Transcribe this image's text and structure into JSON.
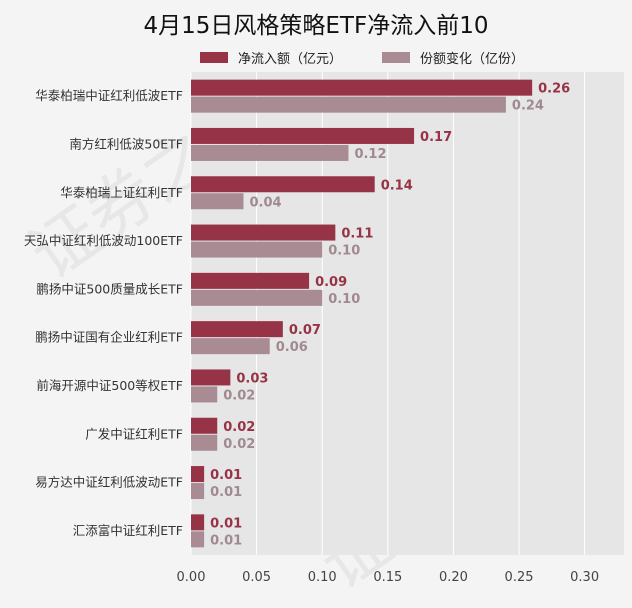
{
  "chart_data": {
    "type": "bar",
    "orientation": "horizontal",
    "title": "4月15日风格策略ETF净流入前10",
    "categories": [
      "华泰柏瑞中证红利低波ETF",
      "南方红利低波50ETF",
      "华泰柏瑞上证红利ETF",
      "天弘中证红利低波动100ETF",
      "鹏扬中证500质量成长ETF",
      "鹏扬中证国有企业红利ETF",
      "前海开源中证500等权ETF",
      "广发中证红利ETF",
      "易方达中证红利低波动ETF",
      "汇添富中证红利ETF"
    ],
    "series": [
      {
        "name": "净流入额（亿元）",
        "color": "#963346",
        "values": [
          0.26,
          0.17,
          0.14,
          0.11,
          0.09,
          0.07,
          0.03,
          0.02,
          0.01,
          0.01
        ],
        "labels": [
          "0.26",
          "0.17",
          "0.14",
          "0.11",
          "0.09",
          "0.07",
          "0.03",
          "0.02",
          "0.01",
          "0.01"
        ]
      },
      {
        "name": "份额变化（亿份）",
        "color": "#a98b93",
        "values": [
          0.24,
          0.12,
          0.04,
          0.1,
          0.1,
          0.06,
          0.02,
          0.02,
          0.01,
          0.01
        ],
        "labels": [
          "0.24",
          "0.12",
          "0.04",
          "0.10",
          "0.10",
          "0.06",
          "0.02",
          "0.02",
          "0.01",
          "0.01"
        ]
      }
    ],
    "xlim": [
      0,
      0.33
    ],
    "xticks": [
      0.0,
      0.05,
      0.1,
      0.15,
      0.2,
      0.25,
      0.3
    ],
    "xtick_labels": [
      "0.00",
      "0.05",
      "0.10",
      "0.15",
      "0.20",
      "0.25",
      "0.30"
    ],
    "grid": true,
    "legend_position": "top"
  },
  "watermark": "证券之星"
}
